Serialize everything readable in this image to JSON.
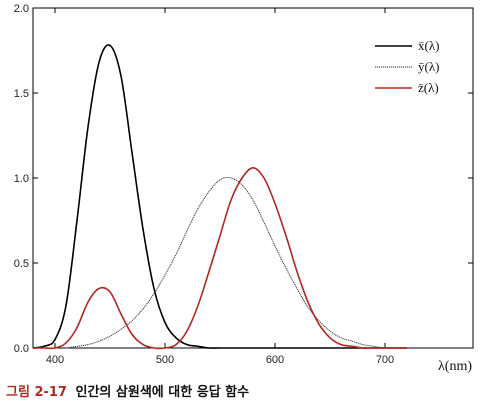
{
  "chart_data": {
    "type": "line",
    "title": "",
    "xlabel": "λ(nm)",
    "ylabel": "",
    "xlim": [
      380,
      780
    ],
    "ylim": [
      0,
      2.0
    ],
    "xticks": [
      400,
      500,
      600,
      700
    ],
    "yticks": [
      0.0,
      0.5,
      1.0,
      1.5,
      2.0
    ],
    "xtick_labels": [
      "400",
      "500",
      "600",
      "700"
    ],
    "ytick_labels": [
      "0.0",
      "0.5",
      "1.0",
      "1.5",
      "2.0"
    ],
    "legend_position": "top-right",
    "grid": false,
    "series": [
      {
        "name": "x̄(λ)",
        "color": "#000000",
        "style": "solid",
        "x": [
          380,
          390,
          400,
          410,
          420,
          430,
          440,
          450,
          460,
          470,
          480,
          490,
          500,
          510,
          520,
          530,
          540,
          550,
          560,
          570,
          580,
          590,
          600,
          610,
          620,
          630,
          640,
          650,
          660,
          670,
          680,
          690,
          700,
          710,
          720
        ],
        "values": [
          0.0,
          0.01,
          0.05,
          0.25,
          0.75,
          1.3,
          1.68,
          1.78,
          1.6,
          1.15,
          0.7,
          0.35,
          0.15,
          0.06,
          0.02,
          0.01,
          0.0,
          0.0,
          0.0,
          0.0,
          0.0,
          0.0,
          0.0,
          0.0,
          0.0,
          0.0,
          0.0,
          0.0,
          0.0,
          0.0,
          0.0,
          0.0,
          0.0,
          0.0,
          0.0
        ]
      },
      {
        "name": "ȳ(λ)",
        "color": "#333333",
        "style": "dotted",
        "x": [
          380,
          390,
          400,
          410,
          420,
          430,
          440,
          450,
          460,
          470,
          480,
          490,
          500,
          510,
          520,
          530,
          540,
          550,
          560,
          570,
          580,
          590,
          600,
          610,
          620,
          630,
          640,
          650,
          660,
          670,
          680,
          690,
          700,
          710,
          720
        ],
        "values": [
          0.0,
          0.0,
          0.0,
          0.0,
          0.01,
          0.02,
          0.04,
          0.07,
          0.11,
          0.16,
          0.23,
          0.32,
          0.43,
          0.55,
          0.69,
          0.82,
          0.92,
          0.99,
          1.0,
          0.96,
          0.87,
          0.74,
          0.6,
          0.47,
          0.35,
          0.24,
          0.16,
          0.1,
          0.06,
          0.04,
          0.02,
          0.01,
          0.0,
          0.0,
          0.0
        ]
      },
      {
        "name": "z̄(λ)",
        "color": "#b5261e",
        "style": "solid",
        "x": [
          380,
          390,
          400,
          410,
          420,
          430,
          440,
          450,
          460,
          470,
          480,
          490,
          500,
          510,
          520,
          530,
          540,
          550,
          560,
          570,
          580,
          590,
          600,
          610,
          620,
          630,
          640,
          650,
          660,
          670,
          680,
          690,
          700,
          710,
          720
        ],
        "values": [
          0.0,
          0.0,
          0.0,
          0.03,
          0.12,
          0.27,
          0.35,
          0.33,
          0.2,
          0.08,
          0.02,
          0.0,
          0.0,
          0.02,
          0.1,
          0.25,
          0.45,
          0.66,
          0.87,
          1.0,
          1.06,
          1.0,
          0.85,
          0.66,
          0.45,
          0.27,
          0.14,
          0.06,
          0.02,
          0.01,
          0.0,
          0.0,
          0.0,
          0.0,
          0.0
        ]
      }
    ]
  },
  "caption": {
    "number": "그림 2-17",
    "text": "인간의 삼원색에 대한 응답 함수"
  }
}
